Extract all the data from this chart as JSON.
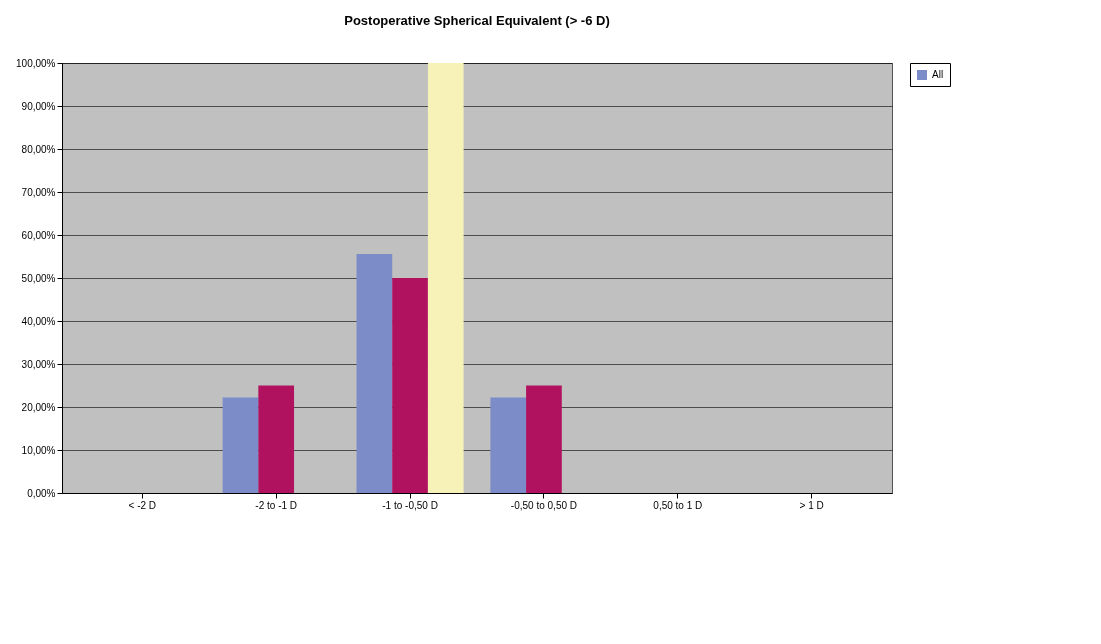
{
  "chart_data": {
    "type": "bar",
    "title": "Postoperative Spherical Equivalent (> -6 D)",
    "categories": [
      "< -2 D",
      "-2 to -1 D",
      "-1 to -0,50 D",
      "-0,50 to 0,50 D",
      "0,50 to 1 D",
      "> 1 D"
    ],
    "series": [
      {
        "name": "All",
        "color": "#7b8cc8",
        "values": [
          0,
          22.2,
          55.6,
          22.2,
          0,
          0
        ]
      },
      {
        "color": "#b0125f",
        "values": [
          0,
          25,
          50,
          25,
          0,
          0
        ]
      },
      {
        "color": "#f7f2b8",
        "values": [
          0,
          0,
          100,
          0,
          0,
          0
        ]
      }
    ],
    "ylim": [
      0,
      100
    ],
    "yticks": [
      {
        "value": 0,
        "label": "0,00%"
      },
      {
        "value": 10,
        "label": "10,00%"
      },
      {
        "value": 20,
        "label": "20,00%"
      },
      {
        "value": 30,
        "label": "30,00%"
      },
      {
        "value": 40,
        "label": "40,00%"
      },
      {
        "value": 50,
        "label": "50,00%"
      },
      {
        "value": 60,
        "label": "60,00%"
      },
      {
        "value": 70,
        "label": "70,00%"
      },
      {
        "value": 80,
        "label": "80,00%"
      },
      {
        "value": 90,
        "label": "90,00%"
      },
      {
        "value": 100,
        "label": "100,00%"
      }
    ],
    "grid": "y",
    "legend": "right"
  }
}
